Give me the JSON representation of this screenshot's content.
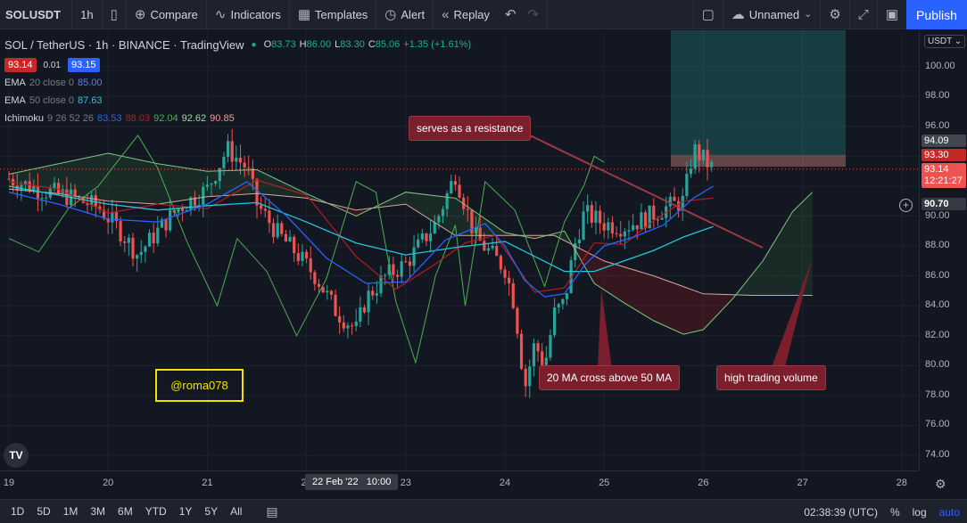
{
  "toolbar": {
    "symbol": "SOLUSDT",
    "interval": "1h",
    "compare_label": "Compare",
    "indicators_label": "Indicators",
    "templates_label": "Templates",
    "alert_label": "Alert",
    "replay_label": "Replay",
    "layout_name": "Unnamed",
    "publish_label": "Publish"
  },
  "legend": {
    "title": "SOL / TetherUS · 1h · BINANCE · TradingView",
    "o_label": "O",
    "o": "83.73",
    "h_label": "H",
    "h": "86.00",
    "l_label": "L",
    "l": "83.30",
    "c_label": "C",
    "c": "85.06",
    "change": "+1.35 (+1.61%)",
    "bid": "93.14",
    "spread": "0.01",
    "ask": "93.15",
    "ema20_name": "EMA",
    "ema20_params": "20 close 0",
    "ema20_value": "85.00",
    "ema50_name": "EMA",
    "ema50_params": "50 close 0",
    "ema50_value": "87.63",
    "ichi_name": "Ichimoku",
    "ichi_params": "9 26 52 26",
    "ichi_v1": "83.53",
    "ichi_v2": "88.03",
    "ichi_v3": "92.04",
    "ichi_v4": "92.62",
    "ichi_v5": "90.85"
  },
  "annotations": {
    "resistance": "serves as a resistance",
    "ma_cross": "20 MA cross above 50 MA",
    "volume": "high trading volume",
    "watermark": "@roma078"
  },
  "price_axis": {
    "currency": "USDT",
    "tag_top": "94.09",
    "tag_red": "93.30",
    "tag_last": "93.14",
    "tag_timer": "12:21:27",
    "tag_hover": "90.70"
  },
  "time_axis": {
    "crosshair": "22 Feb '22   10:00"
  },
  "bottom": {
    "ranges": [
      "1D",
      "5D",
      "1M",
      "3M",
      "6M",
      "YTD",
      "1Y",
      "5Y",
      "All"
    ],
    "clock": "02:38:39 (UTC)",
    "percent": "%",
    "log": "log",
    "auto": "auto"
  },
  "colors": {
    "up": "#26a69a",
    "down": "#ef5350",
    "ema20": "#2962ff",
    "ema50": "#26c6da",
    "lagging": "#4caf50",
    "leading_a": "#81c784",
    "leading_b": "#c0c0c0",
    "base": "#b71c1c"
  },
  "chart_data": {
    "type": "line",
    "title": "SOL / TetherUS · 1h · BINANCE · TradingView",
    "ylim": [
      73,
      103
    ],
    "y_ticks": [
      74,
      76,
      78,
      80,
      82,
      84,
      86,
      88,
      90,
      92,
      94,
      96,
      98,
      100
    ],
    "x_ticks": [
      "19",
      "20",
      "21",
      "22",
      "23",
      "24",
      "25",
      "26",
      "27",
      "28"
    ],
    "x_tick_days": [
      19,
      20,
      21,
      22,
      23,
      24,
      25,
      26,
      27,
      28
    ],
    "last_day": 26.1,
    "price_line": 93.14,
    "series": [
      {
        "key": "close",
        "x": [
          19.0,
          19.3,
          19.6,
          19.9,
          20.1,
          20.3,
          20.5,
          20.7,
          21.0,
          21.2,
          21.4,
          21.5,
          21.7,
          21.9,
          22.1,
          22.3,
          22.5,
          22.6,
          22.8,
          23.0,
          23.3,
          23.5,
          23.7,
          23.9,
          24.0,
          24.1,
          24.2,
          24.3,
          24.4,
          24.5,
          24.6,
          24.7,
          24.8,
          25.0,
          25.2,
          25.4,
          25.6,
          25.8,
          25.9,
          26.0,
          26.1
        ],
        "values": [
          92.5,
          91.8,
          91.3,
          90.6,
          89.2,
          87.4,
          89.0,
          90.5,
          91.8,
          94.5,
          93.2,
          90.8,
          88.9,
          87.5,
          85.9,
          83.6,
          82.4,
          84.5,
          86.0,
          86.8,
          89.5,
          92.8,
          88.6,
          87.2,
          86.5,
          84.0,
          78.5,
          81.5,
          80.0,
          83.5,
          84.2,
          88.0,
          90.2,
          89.5,
          89.3,
          89.8,
          90.5,
          91.0,
          94.5,
          93.8,
          93.14
        ]
      },
      {
        "name": "EMA 20 close 0",
        "key": "ema20",
        "x": [
          19.0,
          19.5,
          20.0,
          20.5,
          21.0,
          21.4,
          21.8,
          22.2,
          22.6,
          23.0,
          23.4,
          23.8,
          24.0,
          24.2,
          24.4,
          24.6,
          24.8,
          25.0,
          25.3,
          25.6,
          25.9,
          26.1
        ],
        "values": [
          91.6,
          90.8,
          89.8,
          89.6,
          90.8,
          92.3,
          90.0,
          87.2,
          85.5,
          85.6,
          88.4,
          89.5,
          88.0,
          85.7,
          84.6,
          84.8,
          86.7,
          88.0,
          88.6,
          89.4,
          91.2,
          92.0
        ]
      },
      {
        "name": "EMA 50 close 0",
        "key": "ema50",
        "x": [
          19.0,
          19.5,
          20.0,
          20.5,
          21.0,
          21.5,
          22.0,
          22.5,
          23.0,
          23.5,
          24.0,
          24.3,
          24.6,
          24.9,
          25.2,
          25.5,
          25.8,
          26.1
        ],
        "values": [
          92.0,
          91.4,
          90.8,
          90.4,
          90.7,
          90.9,
          89.6,
          88.2,
          87.4,
          87.9,
          88.3,
          87.3,
          86.3,
          86.3,
          87.0,
          87.7,
          88.6,
          89.3
        ]
      },
      {
        "name": "Ichimoku Leading Span A",
        "key": "span_a",
        "x": [
          19.0,
          19.5,
          20.0,
          20.5,
          21.0,
          21.5,
          22.0,
          22.5,
          23.0,
          23.5,
          24.0,
          24.3,
          24.6,
          24.9,
          25.2,
          25.5,
          25.8,
          26.0,
          26.3,
          26.6,
          26.9,
          27.1
        ],
        "values": [
          92.8,
          93.5,
          94.2,
          93.5,
          93.0,
          93.1,
          91.5,
          90.0,
          91.6,
          91.2,
          88.9,
          88.5,
          89.0,
          85.5,
          84.2,
          83.0,
          82.1,
          82.4,
          84.5,
          87.0,
          90.3,
          91.6
        ]
      },
      {
        "name": "Ichimoku Leading Span B",
        "key": "span_b",
        "x": [
          19.0,
          19.5,
          20.0,
          20.5,
          21.0,
          21.5,
          22.0,
          22.5,
          23.0,
          23.5,
          24.0,
          24.5,
          25.0,
          25.5,
          26.0,
          26.5,
          27.1
        ],
        "values": [
          91.8,
          91.5,
          91.0,
          90.8,
          91.3,
          91.5,
          91.2,
          90.4,
          90.8,
          88.7,
          88.7,
          88.7,
          87.0,
          86.0,
          84.8,
          84.7,
          84.7
        ]
      },
      {
        "name": "Ichimoku Lagging Span",
        "key": "lagging",
        "x": [
          19.0,
          19.3,
          19.6,
          19.9,
          20.1,
          20.3,
          20.5,
          20.8,
          21.1,
          21.3,
          21.6,
          21.9,
          22.2,
          22.5,
          22.7,
          22.9,
          23.1,
          23.3,
          23.5,
          23.6,
          23.8,
          24.1,
          24.4,
          24.6,
          24.8,
          24.9,
          25.0
        ],
        "values": [
          88.5,
          87.6,
          90.5,
          92.0,
          93.7,
          95.4,
          93.2,
          88.2,
          84.0,
          88.5,
          86.3,
          82.0,
          85.8,
          92.3,
          91.6,
          84.3,
          80.2,
          86.0,
          89.4,
          84.0,
          92.3,
          90.4,
          85.3,
          89.6,
          92.1,
          94.0,
          93.6
        ]
      },
      {
        "name": "Ichimoku Base Line",
        "key": "base",
        "x": [
          19.0,
          19.5,
          20.0,
          20.5,
          21.0,
          21.5,
          22.0,
          22.5,
          22.9,
          23.3,
          23.6,
          23.9,
          24.1,
          24.3,
          24.6,
          24.9,
          25.2,
          25.5,
          25.8,
          26.1
        ],
        "values": [
          92.3,
          91.8,
          90.2,
          90.8,
          90.5,
          92.4,
          91.4,
          87.3,
          85.1,
          86.8,
          88.2,
          88.7,
          86.8,
          84.9,
          85.2,
          88.2,
          88.1,
          89.7,
          91.0,
          91.2
        ]
      }
    ]
  }
}
